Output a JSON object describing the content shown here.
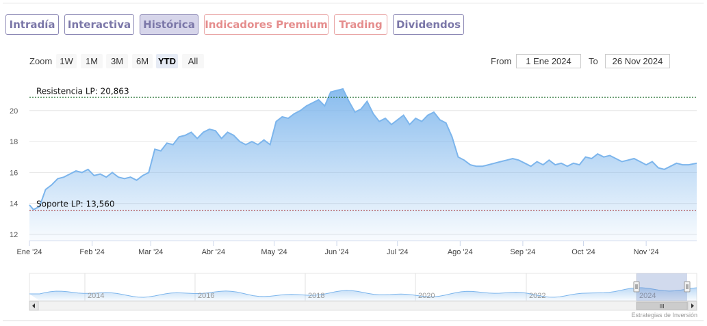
{
  "tabs": [
    {
      "label": "Intradía",
      "style": "normal"
    },
    {
      "label": "Interactiva",
      "style": "normal"
    },
    {
      "label": "Histórica",
      "style": "active"
    },
    {
      "label": "Indicadores Premium",
      "style": "premium"
    },
    {
      "label": "Trading",
      "style": "premium"
    },
    {
      "label": "Dividendos",
      "style": "normal"
    }
  ],
  "zoom": {
    "label": "Zoom",
    "buttons": [
      "1W",
      "1M",
      "3M",
      "6M",
      "YTD",
      "All"
    ],
    "selected": "YTD"
  },
  "range": {
    "from_label": "From",
    "from_value": "1 Ene 2024",
    "to_label": "To",
    "to_value": "26 Nov 2024"
  },
  "chart_data": {
    "type": "area",
    "title": "",
    "xlabel": "",
    "ylabel": "",
    "ylim": [
      11.6,
      22.2
    ],
    "yticks": [
      12,
      14,
      16,
      18,
      20
    ],
    "x_range": [
      "2024-01-01",
      "2024-11-26"
    ],
    "x_ticks": [
      {
        "label": "Ene '24",
        "date": "2024-01-01"
      },
      {
        "label": "Feb '24",
        "date": "2024-02-01"
      },
      {
        "label": "Mar '24",
        "date": "2024-03-01"
      },
      {
        "label": "Abr '24",
        "date": "2024-04-01"
      },
      {
        "label": "May '24",
        "date": "2024-05-01"
      },
      {
        "label": "Jun '24",
        "date": "2024-06-01"
      },
      {
        "label": "Jul '24",
        "date": "2024-07-01"
      },
      {
        "label": "Ago '24",
        "date": "2024-08-01"
      },
      {
        "label": "Sep '24",
        "date": "2024-09-01"
      },
      {
        "label": "Oct '24",
        "date": "2024-10-01"
      },
      {
        "label": "Nov '24",
        "date": "2024-11-01"
      }
    ],
    "grid": true,
    "series_color": "#7cb5ec",
    "series": [
      {
        "x": [
          "2024-01-01",
          "2024-01-03",
          "2024-01-06",
          "2024-01-09",
          "2024-01-12",
          "2024-01-15",
          "2024-01-18",
          "2024-01-21",
          "2024-01-24",
          "2024-01-27",
          "2024-01-30",
          "2024-02-02",
          "2024-02-05",
          "2024-02-08",
          "2024-02-11",
          "2024-02-14",
          "2024-02-17",
          "2024-02-20",
          "2024-02-23",
          "2024-02-26",
          "2024-02-29",
          "2024-03-03",
          "2024-03-06",
          "2024-03-09",
          "2024-03-12",
          "2024-03-15",
          "2024-03-18",
          "2024-03-21",
          "2024-03-24",
          "2024-03-27",
          "2024-03-30",
          "2024-04-02",
          "2024-04-05",
          "2024-04-08",
          "2024-04-11",
          "2024-04-14",
          "2024-04-17",
          "2024-04-20",
          "2024-04-23",
          "2024-04-26",
          "2024-04-29",
          "2024-05-02",
          "2024-05-05",
          "2024-05-08",
          "2024-05-11",
          "2024-05-14",
          "2024-05-17",
          "2024-05-20",
          "2024-05-23",
          "2024-05-26",
          "2024-05-29",
          "2024-06-01",
          "2024-06-04",
          "2024-06-07",
          "2024-06-10",
          "2024-06-13",
          "2024-06-16",
          "2024-06-19",
          "2024-06-22",
          "2024-06-25",
          "2024-06-28",
          "2024-07-01",
          "2024-07-04",
          "2024-07-07",
          "2024-07-10",
          "2024-07-13",
          "2024-07-16",
          "2024-07-19",
          "2024-07-22",
          "2024-07-25",
          "2024-07-28",
          "2024-07-31",
          "2024-08-03",
          "2024-08-06",
          "2024-08-09",
          "2024-08-12",
          "2024-08-15",
          "2024-08-18",
          "2024-08-21",
          "2024-08-24",
          "2024-08-27",
          "2024-08-30",
          "2024-09-02",
          "2024-09-05",
          "2024-09-08",
          "2024-09-11",
          "2024-09-14",
          "2024-09-17",
          "2024-09-20",
          "2024-09-23",
          "2024-09-26",
          "2024-09-29",
          "2024-10-02",
          "2024-10-05",
          "2024-10-08",
          "2024-10-11",
          "2024-10-14",
          "2024-10-17",
          "2024-10-20",
          "2024-10-23",
          "2024-10-26",
          "2024-10-29",
          "2024-11-01",
          "2024-11-04",
          "2024-11-07",
          "2024-11-10",
          "2024-11-13",
          "2024-11-16",
          "2024-11-19",
          "2024-11-22",
          "2024-11-26"
        ],
        "y": [
          13.9,
          13.6,
          13.8,
          14.9,
          15.2,
          15.6,
          15.7,
          15.9,
          16.1,
          16.0,
          16.2,
          15.8,
          15.9,
          15.7,
          16.0,
          15.7,
          15.6,
          15.7,
          15.5,
          15.8,
          16.0,
          17.5,
          17.4,
          17.9,
          17.8,
          18.3,
          18.4,
          18.6,
          18.2,
          18.6,
          18.8,
          18.7,
          18.2,
          18.6,
          18.4,
          18.0,
          17.8,
          18.0,
          17.8,
          18.1,
          17.8,
          19.3,
          19.6,
          19.5,
          19.8,
          20.0,
          20.3,
          20.5,
          20.7,
          20.3,
          21.2,
          21.3,
          21.4,
          20.6,
          19.9,
          20.1,
          20.6,
          19.8,
          19.3,
          19.5,
          19.1,
          19.4,
          19.7,
          19.1,
          19.5,
          19.3,
          19.7,
          19.9,
          19.4,
          19.2,
          18.3,
          17.0,
          16.8,
          16.5,
          16.4,
          16.4,
          16.5,
          16.6,
          16.7,
          16.8,
          16.9,
          16.8,
          16.6,
          16.4,
          16.7,
          16.5,
          16.8,
          16.5,
          16.6,
          16.4,
          16.6,
          16.5,
          17.0,
          16.9,
          17.2,
          17.0,
          17.1,
          16.9,
          16.7,
          16.8,
          16.9,
          16.7,
          16.5,
          16.7,
          16.3,
          16.2,
          16.4,
          16.6,
          16.5,
          16.5,
          16.6
        ]
      }
    ],
    "plot_lines": [
      {
        "label": "Resistencia LP: 20,863",
        "value": 20.863,
        "color": "#1d6b2a"
      },
      {
        "label": "Soporte LP: 13,560",
        "value": 13.56,
        "color": "#a0242b"
      }
    ],
    "navigator": {
      "years": [
        "2014",
        "2016",
        "2018",
        "2020",
        "2022",
        "2024"
      ],
      "scrollbar_grip": "III"
    }
  },
  "credit": "Estrategias de Inversión"
}
